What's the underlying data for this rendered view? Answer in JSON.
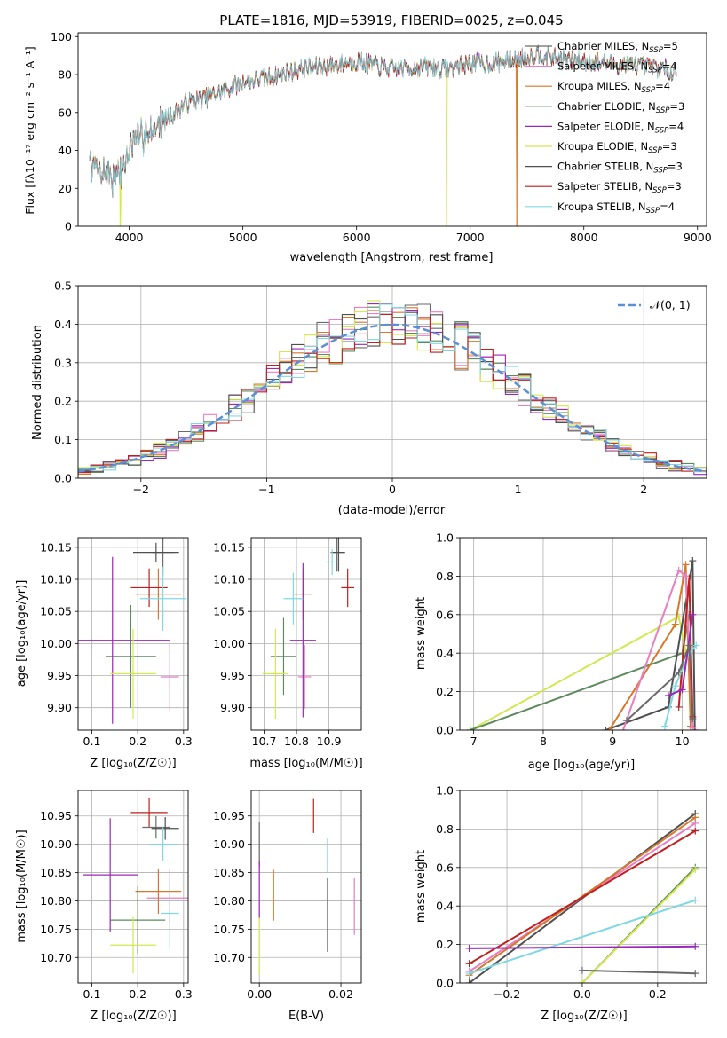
{
  "palette": {
    "Chabrier MILES": "#6a6a6a",
    "Salpeter MILES": "#e77fc0",
    "Kroupa MILES": "#d6772a",
    "Chabrier ELODIE": "#5e8a5e",
    "Salpeter ELODIE": "#9b27b8",
    "Kroupa ELODIE": "#d2e84f",
    "Chabrier STELIB": "#4f4f4f",
    "Salpeter STELIB": "#c01f1f",
    "Kroupa STELIB": "#7fd8e0",
    "Chabrier MILES_line": "#6a6a6a",
    "grid": "#b0b0b0",
    "gauss": "#5b8fd8"
  },
  "chart_data": [
    {
      "id": "spectrum",
      "type": "line",
      "title": "PLATE=1816, MJD=53919, FIBERID=0025, z=0.045",
      "xlabel": "wavelength [Angstrom, rest frame]",
      "ylabel": "Flux [fλ10⁻¹⁷ erg cm⁻² s⁻¹ A⁻¹]",
      "xlim": [
        3550,
        9080
      ],
      "ylim": [
        0,
        102
      ],
      "xticks": [
        4000,
        5000,
        6000,
        7000,
        8000,
        9000
      ],
      "yticks": [
        0,
        20,
        40,
        60,
        80,
        100
      ],
      "grid": false,
      "legend_position": "upper-right",
      "legend": [
        {
          "name": "Chabrier MILES",
          "nssp": "5"
        },
        {
          "name": "Salpeter MILES",
          "nssp": "4"
        },
        {
          "name": "Kroupa MILES",
          "nssp": "4"
        },
        {
          "name": "Chabrier ELODIE",
          "nssp": "3"
        },
        {
          "name": "Salpeter ELODIE",
          "nssp": "4"
        },
        {
          "name": "Kroupa ELODIE",
          "nssp": "3"
        },
        {
          "name": "Chabrier STELIB",
          "nssp": "3"
        },
        {
          "name": "Salpeter STELIB",
          "nssp": "3"
        },
        {
          "name": "Kroupa STELIB",
          "nssp": "4"
        }
      ],
      "continuum": {
        "x": [
          3650,
          3800,
          3900,
          4000,
          4100,
          4200,
          4300,
          4400,
          4500,
          4700,
          5000,
          5200,
          5500,
          5800,
          6000,
          6300,
          6600,
          6800,
          7000,
          7200,
          7400,
          7600,
          7800,
          8000,
          8200,
          8400,
          8600,
          8800
        ],
        "y": [
          32,
          28,
          25,
          40,
          48,
          52,
          55,
          60,
          65,
          68,
          76,
          78,
          83,
          85,
          87,
          83,
          84,
          83,
          86,
          86,
          88,
          91,
          88,
          87,
          86,
          85,
          84,
          82
        ]
      },
      "drops": [
        {
          "series": "Kroupa ELODIE",
          "x": 3920
        },
        {
          "series": "Kroupa ELODIE",
          "x": 6790
        },
        {
          "series": "Kroupa MILES",
          "x": 7410
        }
      ]
    },
    {
      "id": "residuals",
      "type": "line",
      "xlabel": "(data-model)/error",
      "ylabel": "Normed distribution",
      "xlim": [
        -2.5,
        2.5
      ],
      "ylim": [
        0,
        0.5
      ],
      "xticks": [
        -2,
        -1,
        0,
        1,
        2
      ],
      "yticks": [
        0.0,
        0.1,
        0.2,
        0.3,
        0.4,
        0.5
      ],
      "grid": true,
      "legend_position": "upper-right",
      "gauss_label": "𝒩(0, 1)",
      "gauss_mean": 0,
      "gauss_sigma": 1,
      "bin_width": 0.1
    },
    {
      "id": "age_vs_Z",
      "type": "scatter",
      "xlabel": "Z [log₁₀(Z/Z☉)]",
      "ylabel": "age  [log₁₀(age/yr)]",
      "xlim": [
        0.07,
        0.31
      ],
      "ylim": [
        9.865,
        10.165
      ],
      "xticks": [
        0.1,
        0.2,
        0.3
      ],
      "yticks": [
        9.9,
        9.95,
        10.0,
        10.05,
        10.1,
        10.15
      ],
      "grid": true,
      "points": [
        {
          "series": "Chabrier MILES",
          "x": 0.255,
          "y": 10.142,
          "xerr": 0.025,
          "yerr": 0.035
        },
        {
          "series": "Salpeter MILES",
          "x": 0.27,
          "y": 9.948,
          "xerr": 0.02,
          "yerr": 0.053
        },
        {
          "series": "Kroupa MILES",
          "x": 0.245,
          "y": 10.077,
          "xerr": 0.05,
          "yerr": 0.04
        },
        {
          "series": "Chabrier ELODIE",
          "x": 0.185,
          "y": 9.98,
          "xerr": 0.055,
          "yerr": 0.08
        },
        {
          "series": "Salpeter ELODIE",
          "x": 0.145,
          "y": 10.005,
          "xerr": 0.125,
          "yerr": 0.13
        },
        {
          "series": "Kroupa ELODIE",
          "x": 0.19,
          "y": 9.953,
          "xerr": 0.05,
          "yerr": 0.07
        },
        {
          "series": "Chabrier STELIB",
          "x": 0.24,
          "y": 10.142,
          "xerr": 0.05,
          "yerr": 0.015
        },
        {
          "series": "Salpeter STELIB",
          "x": 0.225,
          "y": 10.087,
          "xerr": 0.04,
          "yerr": 0.03
        },
        {
          "series": "Kroupa STELIB",
          "x": 0.255,
          "y": 10.07,
          "xerr": 0.05,
          "yerr": 0.05
        }
      ]
    },
    {
      "id": "age_vs_mass",
      "type": "scatter",
      "xlabel": "mass [log₁₀(M/M☉)]",
      "xlim": [
        10.66,
        11.0
      ],
      "ylim": [
        9.865,
        10.165
      ],
      "xticks": [
        10.7,
        10.8,
        10.9
      ],
      "yticks": [
        9.9,
        9.95,
        10.0,
        10.05,
        10.1,
        10.15
      ],
      "grid": true,
      "points": [
        {
          "series": "Chabrier MILES",
          "x": 10.925,
          "y": 10.142,
          "xerr": 0.02,
          "yerr": 0.03
        },
        {
          "series": "Salpeter MILES",
          "x": 10.825,
          "y": 9.948,
          "xerr": 0.02,
          "yerr": 0.05
        },
        {
          "series": "Kroupa MILES",
          "x": 10.82,
          "y": 10.077,
          "xerr": 0.03,
          "yerr": 0.04
        },
        {
          "series": "Chabrier ELODIE",
          "x": 10.76,
          "y": 9.98,
          "xerr": 0.04,
          "yerr": 0.06
        },
        {
          "series": "Salpeter ELODIE",
          "x": 10.82,
          "y": 10.005,
          "xerr": 0.04,
          "yerr": 0.12
        },
        {
          "series": "Kroupa ELODIE",
          "x": 10.735,
          "y": 9.953,
          "xerr": 0.04,
          "yerr": 0.07
        },
        {
          "series": "Chabrier STELIB",
          "x": 10.93,
          "y": 10.142,
          "xerr": 0.02,
          "yerr": 0.03
        },
        {
          "series": "Salpeter STELIB",
          "x": 10.958,
          "y": 10.087,
          "xerr": 0.02,
          "yerr": 0.03
        },
        {
          "series": "Kroupa STELIB",
          "x": 10.91,
          "y": 10.127,
          "xerr": 0.02,
          "yerr": 0.02
        },
        {
          "series": "Kroupa STELIB",
          "x": 10.79,
          "y": 10.07,
          "xerr": 0.03,
          "yerr": 0.04
        }
      ]
    },
    {
      "id": "weight_vs_age",
      "type": "line",
      "xlabel": "age  [log₁₀(age/yr)]",
      "ylabel": "mass weight",
      "xlim": [
        6.8,
        10.35
      ],
      "ylim": [
        0,
        1.0
      ],
      "xticks": [
        7,
        8,
        9,
        10
      ],
      "yticks": [
        0.0,
        0.2,
        0.4,
        0.6,
        0.8,
        1.0
      ],
      "grid": true,
      "series": [
        {
          "name": "Kroupa ELODIE",
          "x": [
            6.95,
            9.95,
            10.05
          ],
          "y": [
            0.0,
            0.59,
            0.41
          ]
        },
        {
          "name": "Chabrier ELODIE",
          "x": [
            6.95,
            10.0,
            10.1
          ],
          "y": [
            0.0,
            0.4,
            0.6
          ]
        },
        {
          "name": "Chabrier STELIB",
          "x": [
            8.9,
            9.8,
            10.15,
            10.18
          ],
          "y": [
            0.0,
            0.12,
            0.88,
            0.0
          ]
        },
        {
          "name": "Kroupa MILES",
          "x": [
            8.95,
            9.9,
            10.05,
            10.12
          ],
          "y": [
            0.0,
            0.55,
            0.86,
            0.02
          ]
        },
        {
          "name": "Salpeter MILES",
          "x": [
            9.15,
            9.95,
            10.05,
            10.15
          ],
          "y": [
            0.0,
            0.83,
            0.8,
            0.01
          ]
        },
        {
          "name": "Salpeter STELIB",
          "x": [
            9.95,
            10.1,
            10.15
          ],
          "y": [
            0.12,
            0.79,
            0.07
          ]
        },
        {
          "name": "Kroupa STELIB",
          "x": [
            9.75,
            9.9,
            10.1,
            10.2
          ],
          "y": [
            0.02,
            0.23,
            0.4,
            0.44
          ]
        },
        {
          "name": "Salpeter ELODIE",
          "x": [
            9.8,
            10.0,
            10.15
          ],
          "y": [
            0.18,
            0.21,
            0.6
          ]
        },
        {
          "name": "Chabrier MILES",
          "x": [
            9.2,
            9.95,
            10.1,
            10.15
          ],
          "y": [
            0.05,
            0.3,
            0.44,
            0.06
          ]
        }
      ]
    },
    {
      "id": "mass_vs_Z",
      "type": "scatter",
      "xlabel": "Z [log₁₀(Z/Z☉)]",
      "ylabel": "mass [log₁₀(M/M☉)]",
      "xlim": [
        0.07,
        0.31
      ],
      "ylim": [
        10.655,
        10.995
      ],
      "xticks": [
        0.1,
        0.2,
        0.3
      ],
      "yticks": [
        10.7,
        10.75,
        10.8,
        10.85,
        10.9,
        10.95
      ],
      "grid": true,
      "points": [
        {
          "series": "Chabrier MILES",
          "x": 0.24,
          "y": 10.93,
          "xerr": 0.03,
          "yerr": 0.02
        },
        {
          "series": "Salpeter MILES",
          "x": 0.27,
          "y": 10.805,
          "xerr": 0.05,
          "yerr": 0.05
        },
        {
          "series": "Kroupa MILES",
          "x": 0.245,
          "y": 10.817,
          "xerr": 0.05,
          "yerr": 0.04
        },
        {
          "series": "Chabrier ELODIE",
          "x": 0.2,
          "y": 10.766,
          "xerr": 0.06,
          "yerr": 0.06
        },
        {
          "series": "Salpeter ELODIE",
          "x": 0.14,
          "y": 10.846,
          "xerr": 0.06,
          "yerr": 0.1
        },
        {
          "series": "Kroupa ELODIE",
          "x": 0.19,
          "y": 10.722,
          "xerr": 0.05,
          "yerr": 0.05
        },
        {
          "series": "Chabrier STELIB",
          "x": 0.26,
          "y": 10.928,
          "xerr": 0.03,
          "yerr": 0.02
        },
        {
          "series": "Salpeter STELIB",
          "x": 0.225,
          "y": 10.956,
          "xerr": 0.04,
          "yerr": 0.025
        },
        {
          "series": "Kroupa STELIB",
          "x": 0.255,
          "y": 10.9,
          "xerr": 0.03,
          "yerr": 0.03
        },
        {
          "series": "Kroupa STELIB",
          "x": 0.27,
          "y": 10.778,
          "xerr": 0.02,
          "yerr": 0.06
        }
      ]
    },
    {
      "id": "mass_vs_ebv",
      "type": "scatter",
      "xlabel": "E(B-V)",
      "xlim": [
        -0.002,
        0.025
      ],
      "ylim": [
        10.655,
        10.995
      ],
      "xticks": [
        0.0,
        0.02
      ],
      "yticks": [
        10.7,
        10.75,
        10.8,
        10.85,
        10.9,
        10.95
      ],
      "grid": true,
      "points": [
        {
          "series": "Chabrier MILES",
          "x": 0.0,
          "y": 10.9,
          "xerr": 0,
          "yerr": 0.04
        },
        {
          "series": "Salpeter ELODIE",
          "x": 0.0,
          "y": 10.82,
          "xerr": 0,
          "yerr": 0.05
        },
        {
          "series": "Kroupa ELODIE",
          "x": 0.0,
          "y": 10.72,
          "xerr": 0,
          "yerr": 0.05
        },
        {
          "series": "Kroupa MILES",
          "x": 0.0035,
          "y": 10.81,
          "xerr": 0,
          "yerr": 0.045
        },
        {
          "series": "Salpeter STELIB",
          "x": 0.0133,
          "y": 10.95,
          "xerr": 0,
          "yerr": 0.03
        },
        {
          "series": "Kroupa STELIB",
          "x": 0.0167,
          "y": 10.88,
          "xerr": 0,
          "yerr": 0.03
        },
        {
          "series": "Chabrier MILES",
          "x": 0.0167,
          "y": 10.775,
          "xerr": 0,
          "yerr": 0.065
        },
        {
          "series": "Salpeter MILES",
          "x": 0.0233,
          "y": 10.79,
          "xerr": 0,
          "yerr": 0.05
        }
      ]
    },
    {
      "id": "weight_vs_Z",
      "type": "line",
      "xlabel": "Z [log₁₀(Z/Z☉)]",
      "ylabel": "mass weight",
      "xlim": [
        -0.325,
        0.33
      ],
      "ylim": [
        0,
        1.0
      ],
      "xticks": [
        -0.2,
        0.0,
        0.2
      ],
      "yticks": [
        0.0,
        0.2,
        0.4,
        0.6,
        0.8,
        1.0
      ],
      "grid": true,
      "series": [
        {
          "name": "Chabrier STELIB",
          "x": [
            -0.3,
            0.3
          ],
          "y": [
            0.0,
            0.88
          ]
        },
        {
          "name": "Salpeter MILES",
          "x": [
            -0.3,
            0.3
          ],
          "y": [
            0.06,
            0.83
          ]
        },
        {
          "name": "Kroupa MILES",
          "x": [
            -0.3,
            0.3
          ],
          "y": [
            0.04,
            0.86
          ]
        },
        {
          "name": "Salpeter STELIB",
          "x": [
            -0.3,
            0.3
          ],
          "y": [
            0.1,
            0.79
          ]
        },
        {
          "name": "Chabrier ELODIE",
          "x": [
            0.0,
            0.3
          ],
          "y": [
            0.0,
            0.6
          ]
        },
        {
          "name": "Kroupa ELODIE",
          "x": [
            0.0,
            0.3
          ],
          "y": [
            0.0,
            0.59
          ]
        },
        {
          "name": "Kroupa STELIB",
          "x": [
            -0.3,
            0.3
          ],
          "y": [
            0.05,
            0.43
          ]
        },
        {
          "name": "Salpeter ELODIE",
          "x": [
            -0.3,
            0.3
          ],
          "y": [
            0.18,
            0.19
          ]
        },
        {
          "name": "Chabrier MILES",
          "x": [
            0.0,
            0.3
          ],
          "y": [
            0.065,
            0.05
          ]
        }
      ]
    }
  ]
}
